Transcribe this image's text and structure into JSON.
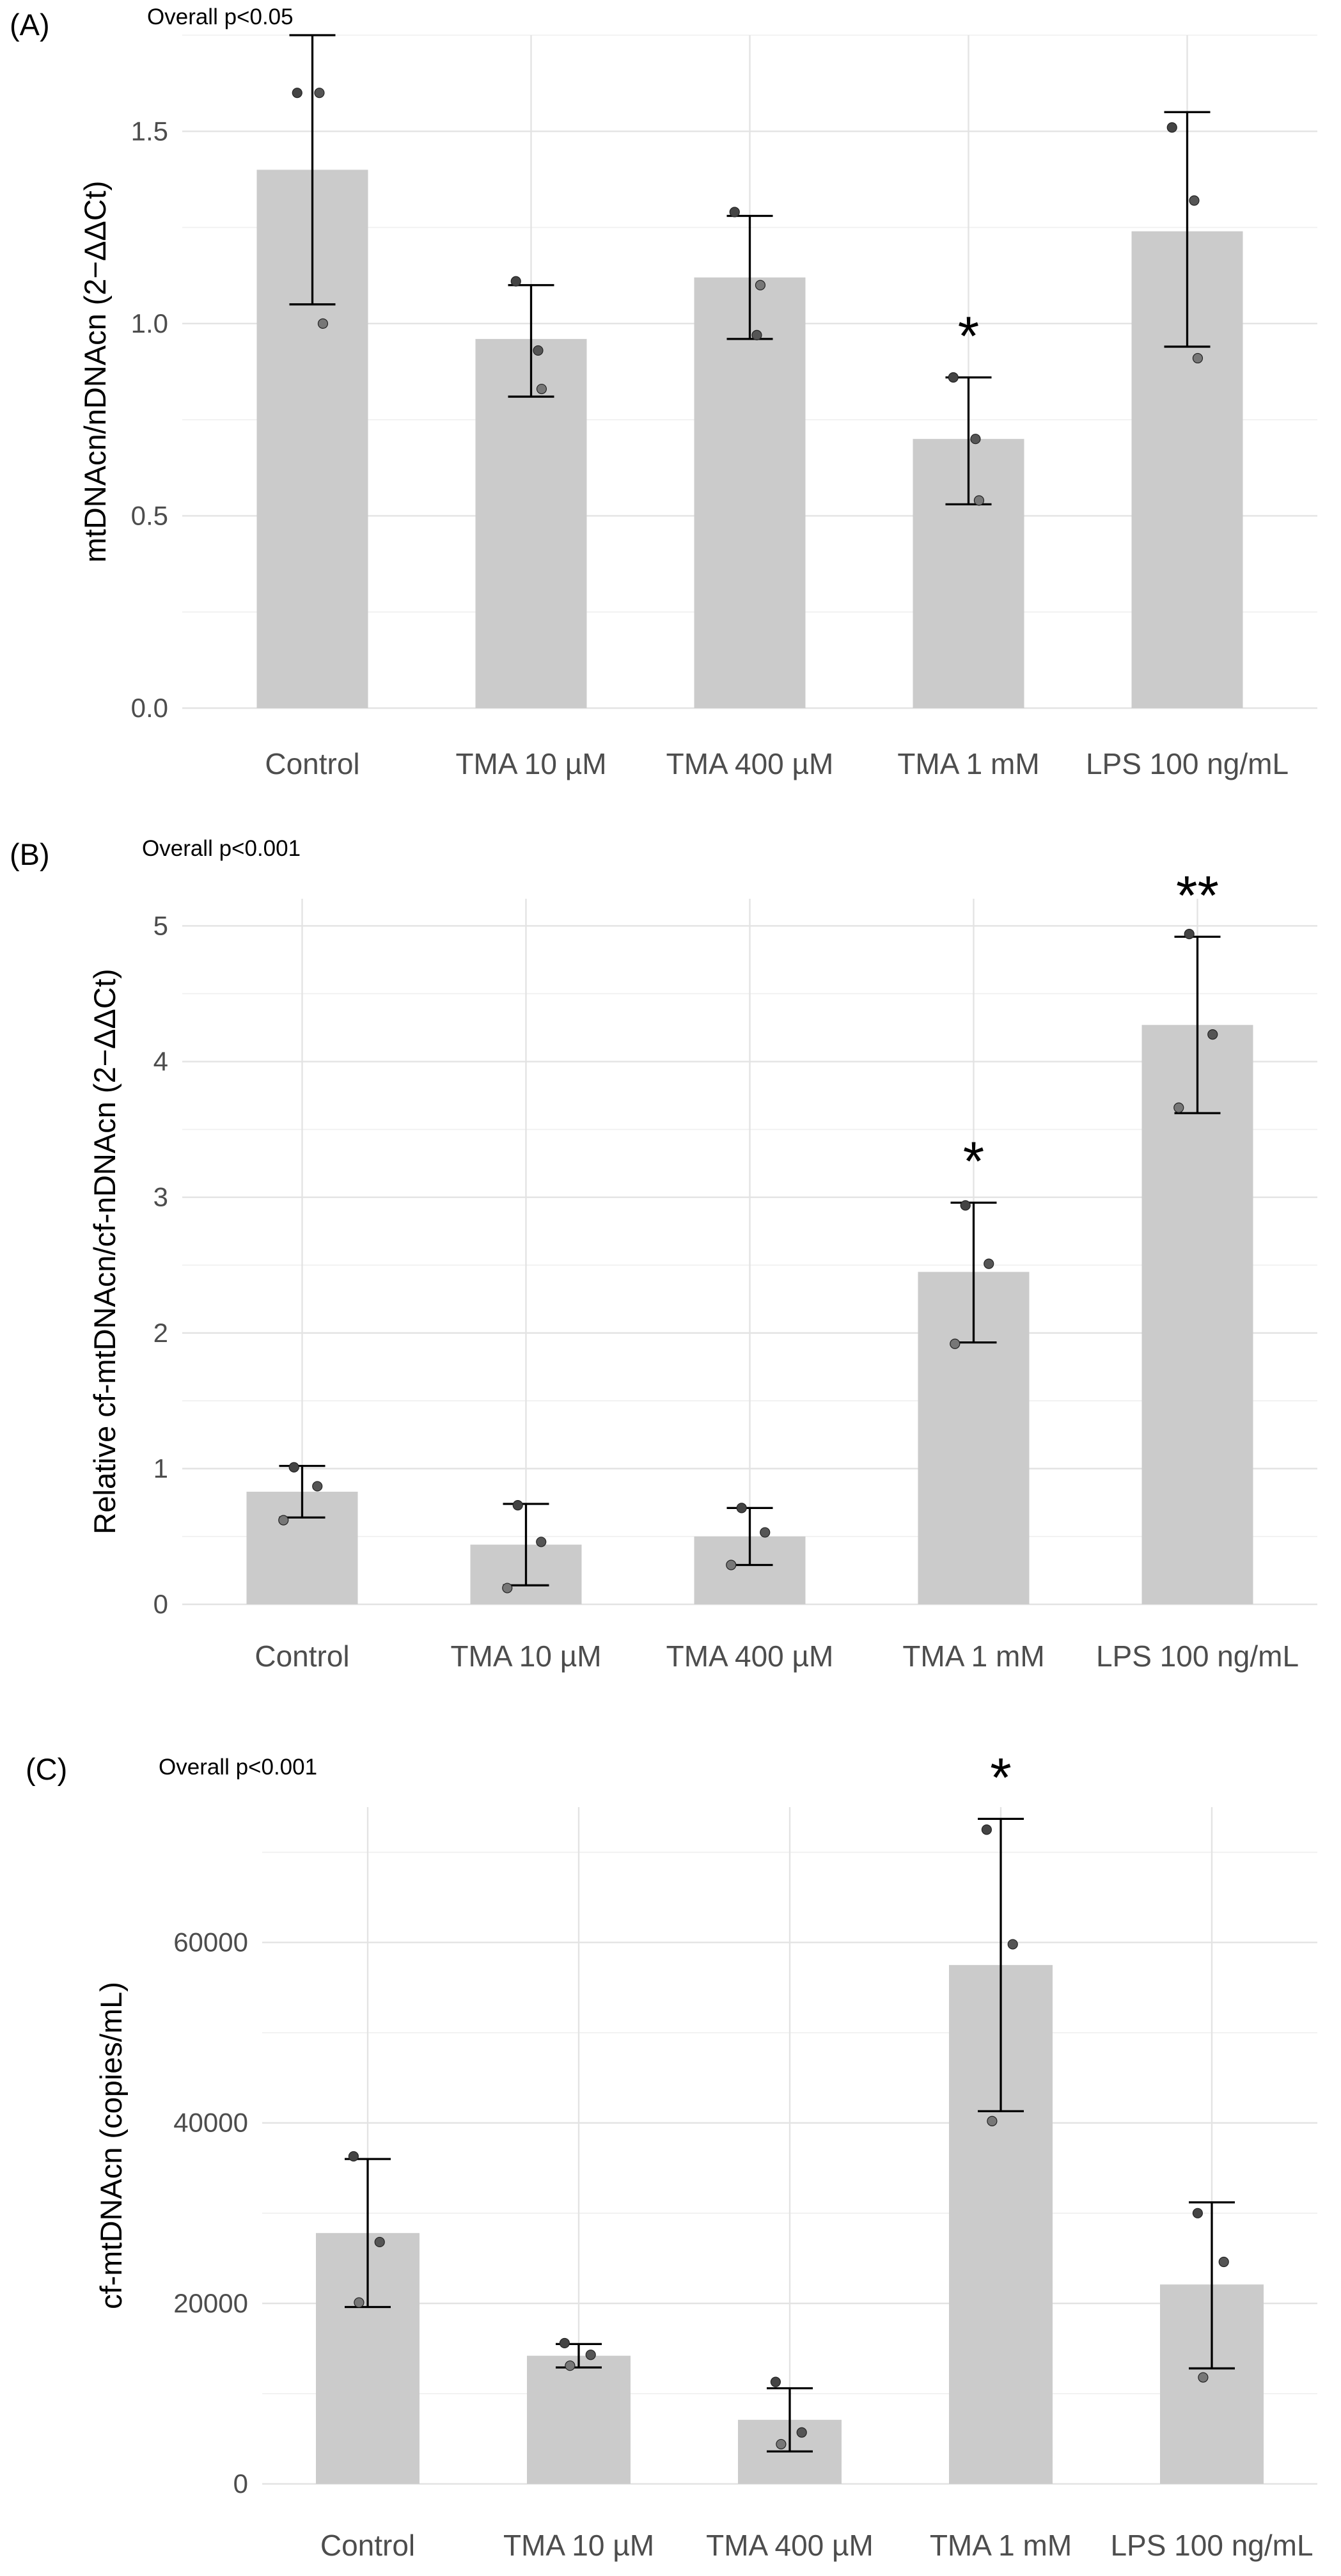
{
  "figure": {
    "description_labels": [
      "(A)",
      "(B)",
      "(C)"
    ]
  },
  "chart_data": [
    {
      "type": "bar",
      "panel_label": "(A)",
      "overall": "Overall p<0.05",
      "title": "",
      "xlabel": "",
      "ylabel": "mtDNAcn/nDNAcn (2−ΔΔCt)",
      "categories": [
        "Control",
        "TMA 10 µM",
        "TMA 400 µM",
        "TMA 1 mM",
        "LPS 100 ng/mL"
      ],
      "values": [
        1.4,
        0.96,
        1.12,
        0.7,
        1.24
      ],
      "error_low": [
        1.05,
        0.81,
        0.96,
        0.53,
        0.94
      ],
      "error_high": [
        1.75,
        1.1,
        1.28,
        0.86,
        1.55
      ],
      "points": [
        [
          1.6,
          1.6,
          1.0
        ],
        [
          1.11,
          0.93,
          0.83
        ],
        [
          1.29,
          0.97,
          1.1
        ],
        [
          0.86,
          0.7,
          0.54
        ],
        [
          1.51,
          1.32,
          0.91
        ]
      ],
      "point_color": [
        "#444444",
        "#555555",
        "#777777"
      ],
      "significance": [
        "",
        "",
        "",
        "*",
        ""
      ],
      "yticks": [
        0.0,
        0.5,
        1.0,
        1.5
      ],
      "yticklabels": [
        "0.0",
        "0.5",
        "1.0",
        "1.5"
      ],
      "ylim": [
        0,
        1.75
      ],
      "grid": true
    },
    {
      "type": "bar",
      "panel_label": "(B)",
      "overall": "Overall p<0.001",
      "title": "",
      "xlabel": "",
      "ylabel": "Relative cf-mtDNAcn/cf-nDNAcn (2−ΔΔCt)",
      "categories": [
        "Control",
        "TMA 10 µM",
        "TMA 400 µM",
        "TMA 1 mM",
        "LPS 100 ng/mL"
      ],
      "values": [
        0.83,
        0.44,
        0.5,
        2.45,
        4.27
      ],
      "error_low": [
        0.64,
        0.14,
        0.29,
        1.93,
        3.62
      ],
      "error_high": [
        1.02,
        0.74,
        0.71,
        2.96,
        4.92
      ],
      "points": [
        [
          1.01,
          0.87,
          0.62
        ],
        [
          0.73,
          0.46,
          0.12
        ],
        [
          0.71,
          0.53,
          0.29
        ],
        [
          2.94,
          2.51,
          1.92
        ],
        [
          4.94,
          4.2,
          3.66
        ]
      ],
      "point_color": [
        "#444444",
        "#555555",
        "#777777"
      ],
      "significance": [
        "",
        "",
        "",
        "*",
        "**"
      ],
      "yticks": [
        0,
        1,
        2,
        3,
        4,
        5
      ],
      "yticklabels": [
        "0",
        "1",
        "2",
        "3",
        "4",
        "5"
      ],
      "ylim": [
        0,
        5.2
      ],
      "grid": true
    },
    {
      "type": "bar",
      "panel_label": "(C)",
      "overall": "Overall p<0.001",
      "title": "",
      "xlabel": "",
      "ylabel": "cf-mtDNAcn (copies/mL)",
      "categories": [
        "Control",
        "TMA 10 µM",
        "TMA 400 µM",
        "TMA 1 mM",
        "LPS 100 ng/mL"
      ],
      "values": [
        27800,
        14200,
        7100,
        57500,
        22100
      ],
      "error_low": [
        19600,
        12900,
        3600,
        41300,
        12800
      ],
      "error_high": [
        36000,
        15500,
        10600,
        73700,
        31200
      ],
      "points": [
        [
          36300,
          26800,
          20100
        ],
        [
          15600,
          14300,
          13100
        ],
        [
          11300,
          5700,
          4400
        ],
        [
          72500,
          59800,
          40200
        ],
        [
          30000,
          24600,
          11800
        ]
      ],
      "point_color": [
        "#444444",
        "#555555",
        "#777777"
      ],
      "significance": [
        "",
        "",
        "",
        "*",
        ""
      ],
      "yticks": [
        0,
        20000,
        40000,
        60000
      ],
      "yticklabels": [
        "0",
        "20000",
        "40000",
        "60000"
      ],
      "ylim": [
        0,
        75000
      ],
      "grid": true
    }
  ]
}
